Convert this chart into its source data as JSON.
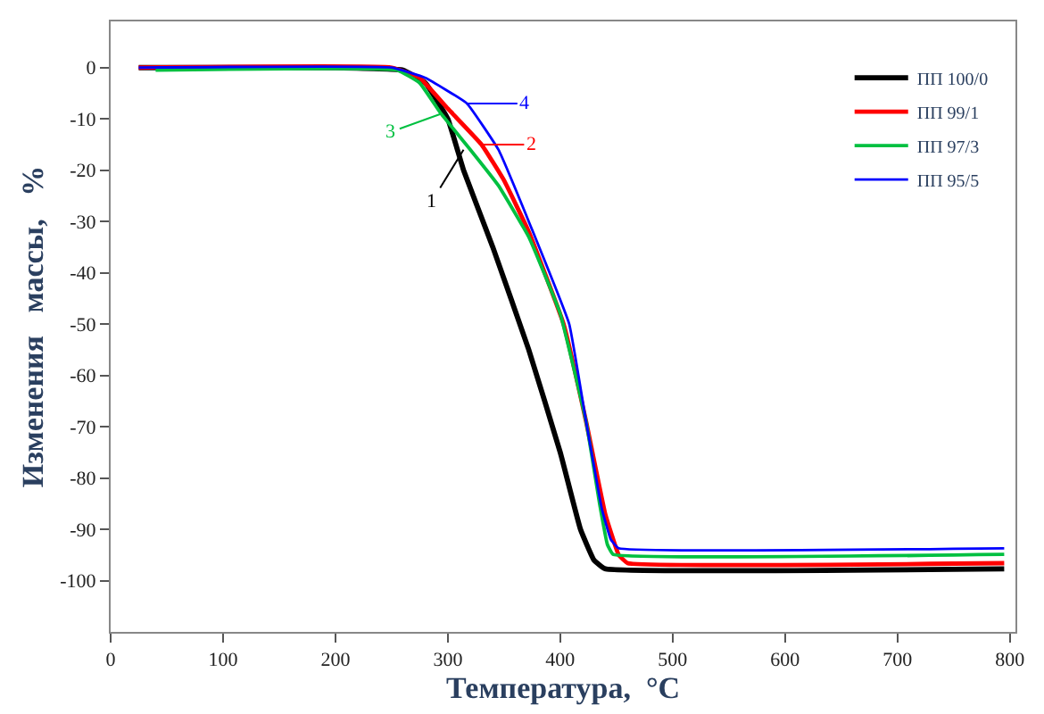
{
  "chart_data": {
    "type": "line",
    "xlabel": "Температура,  °C",
    "ylabel": "Изменения   массы,   %",
    "xlim": [
      0,
      805
    ],
    "ylim": [
      -110,
      9
    ],
    "xticks": [
      0,
      100,
      200,
      300,
      400,
      500,
      600,
      700,
      800
    ],
    "yticks": [
      0,
      -10,
      -20,
      -30,
      -40,
      -50,
      -60,
      -70,
      -80,
      -90,
      -100
    ],
    "grid": false,
    "legend": "top right",
    "marker": "none",
    "line_style": "solid",
    "series": [
      {
        "name": "ПП 100/0",
        "color": "#000000",
        "x": [
          25,
          200,
          260,
          280,
          300,
          314,
          340,
          372,
          400,
          418,
          430,
          440,
          795
        ],
        "values": [
          0,
          0,
          -0.5,
          -3,
          -10,
          -20,
          -35,
          -55,
          -75,
          -90,
          -96,
          -97.7,
          -97.7
        ]
      },
      {
        "name": "ПП 99/1",
        "color": "#ff0000",
        "x": [
          25,
          250,
          275,
          300,
          330,
          350,
          372,
          403,
          423,
          440,
          452,
          460,
          795
        ],
        "values": [
          0,
          0,
          -2,
          -8,
          -15,
          -22,
          -32,
          -50,
          -69,
          -87,
          -95,
          -96.6,
          -96.6
        ]
      },
      {
        "name": "ПП 97/3",
        "color": "#00c040",
        "x": [
          40,
          255,
          275,
          294,
          320,
          345,
          372,
          400,
          423,
          435,
          442,
          447,
          795
        ],
        "values": [
          -0.5,
          -0.5,
          -3,
          -9,
          -16,
          -23,
          -33,
          -48,
          -69,
          -85,
          -93,
          -94.9,
          -94.9
        ]
      },
      {
        "name": "ПП 95/5",
        "color": "#0000ff",
        "x": [
          25,
          250,
          280,
          317,
          345,
          372,
          408,
          423,
          437,
          445,
          452,
          795
        ],
        "values": [
          0,
          0,
          -2,
          -7,
          -16,
          -30,
          -50,
          -69,
          -86,
          -92,
          -93.7,
          -93.7
        ]
      }
    ],
    "annotations": [
      {
        "text": "1",
        "x": 314,
        "y": -16
      },
      {
        "text": "2",
        "x": 330,
        "y": -15
      },
      {
        "text": "3",
        "x": 294,
        "y": -9
      },
      {
        "text": "4",
        "x": 317,
        "y": -7
      }
    ]
  }
}
